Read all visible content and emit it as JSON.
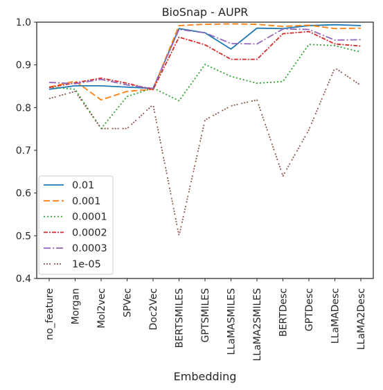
{
  "chart_data": {
    "type": "line",
    "title": "BioSnap - AUPR",
    "xlabel": "Embedding",
    "ylabel": "",
    "ylim": [
      0.4,
      1.0
    ],
    "yticks": [
      "0.4",
      "0.5",
      "0.6",
      "0.7",
      "0.8",
      "0.9",
      "1.0"
    ],
    "grid": false,
    "legend_position": "lower-left",
    "categories": [
      "no_feature",
      "Morgan",
      "Mol2vec",
      "SPVec",
      "Doc2Vec",
      "BERTSMILES",
      "GPTSMILES",
      "LLaMASMILES",
      "LLaMA2SMILES",
      "BERTDesc",
      "GPTDesc",
      "LLaMADesc",
      "LLaMA2Desc"
    ],
    "series": [
      {
        "name": "0.01",
        "color": "#1f77b4",
        "dash": "",
        "values": [
          0.843,
          0.851,
          0.851,
          0.848,
          0.845,
          0.985,
          0.975,
          0.937,
          0.986,
          0.985,
          0.992,
          0.994,
          0.992
        ]
      },
      {
        "name": "0.001",
        "color": "#ff7f0e",
        "dash": "9,4",
        "values": [
          0.848,
          0.862,
          0.818,
          0.838,
          0.843,
          0.992,
          0.995,
          0.996,
          0.995,
          0.99,
          0.993,
          0.985,
          0.986
        ]
      },
      {
        "name": "0.0001",
        "color": "#2ca02c",
        "dash": "2,3",
        "values": [
          0.848,
          0.843,
          0.751,
          0.826,
          0.846,
          0.816,
          0.901,
          0.873,
          0.857,
          0.861,
          0.948,
          0.945,
          0.93
        ]
      },
      {
        "name": "0.0002",
        "color": "#d62728",
        "dash": "6,2,2,2",
        "values": [
          0.847,
          0.858,
          0.869,
          0.857,
          0.842,
          0.965,
          0.947,
          0.913,
          0.913,
          0.973,
          0.978,
          0.949,
          0.944
        ]
      },
      {
        "name": "0.0003",
        "color": "#9467bd",
        "dash": "10,3,2,3",
        "values": [
          0.859,
          0.856,
          0.866,
          0.853,
          0.845,
          0.983,
          0.975,
          0.95,
          0.949,
          0.984,
          0.983,
          0.958,
          0.959
        ]
      },
      {
        "name": "1e-05",
        "color": "#8c564b",
        "dash": "2,2,2,2,2,5",
        "values": [
          0.821,
          0.838,
          0.751,
          0.751,
          0.807,
          0.5,
          0.771,
          0.804,
          0.818,
          0.64,
          0.748,
          0.893,
          0.852
        ]
      }
    ]
  }
}
